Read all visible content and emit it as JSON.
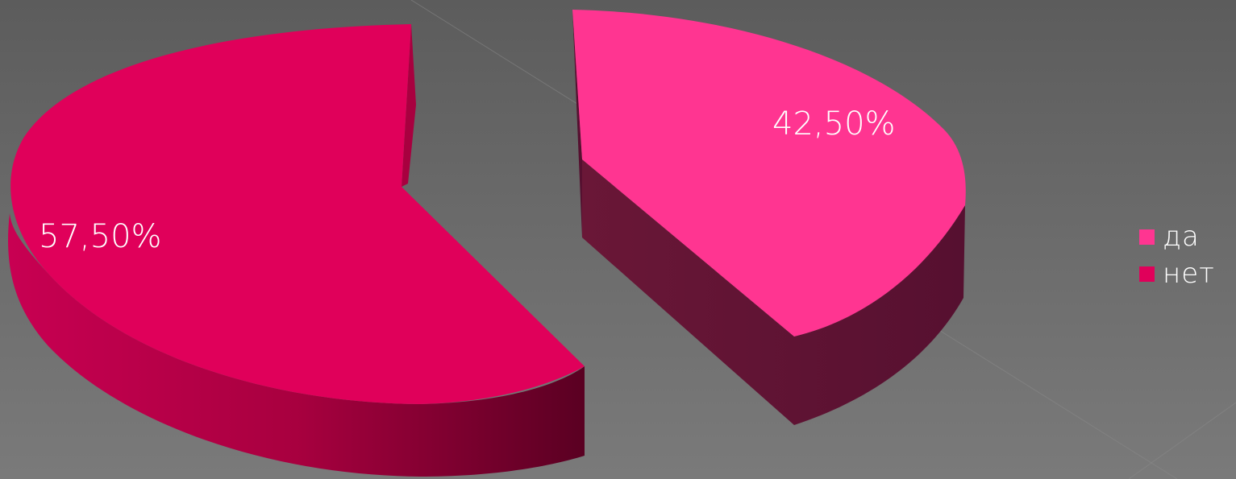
{
  "chart_data": {
    "type": "pie",
    "style": "3d-exploded",
    "slices": [
      {
        "label": "да",
        "value": 42.5,
        "value_label": "42,50%",
        "color": "#ff3591"
      },
      {
        "label": "нет",
        "value": 57.5,
        "value_label": "57,50%",
        "color": "#e0005a"
      }
    ],
    "legend": {
      "position": "right",
      "items": [
        {
          "label": "да",
          "color": "#ff3591"
        },
        {
          "label": "нет",
          "color": "#e0005a"
        }
      ]
    }
  },
  "colors": {
    "background": "#666666",
    "label_text": "#ffffff"
  }
}
